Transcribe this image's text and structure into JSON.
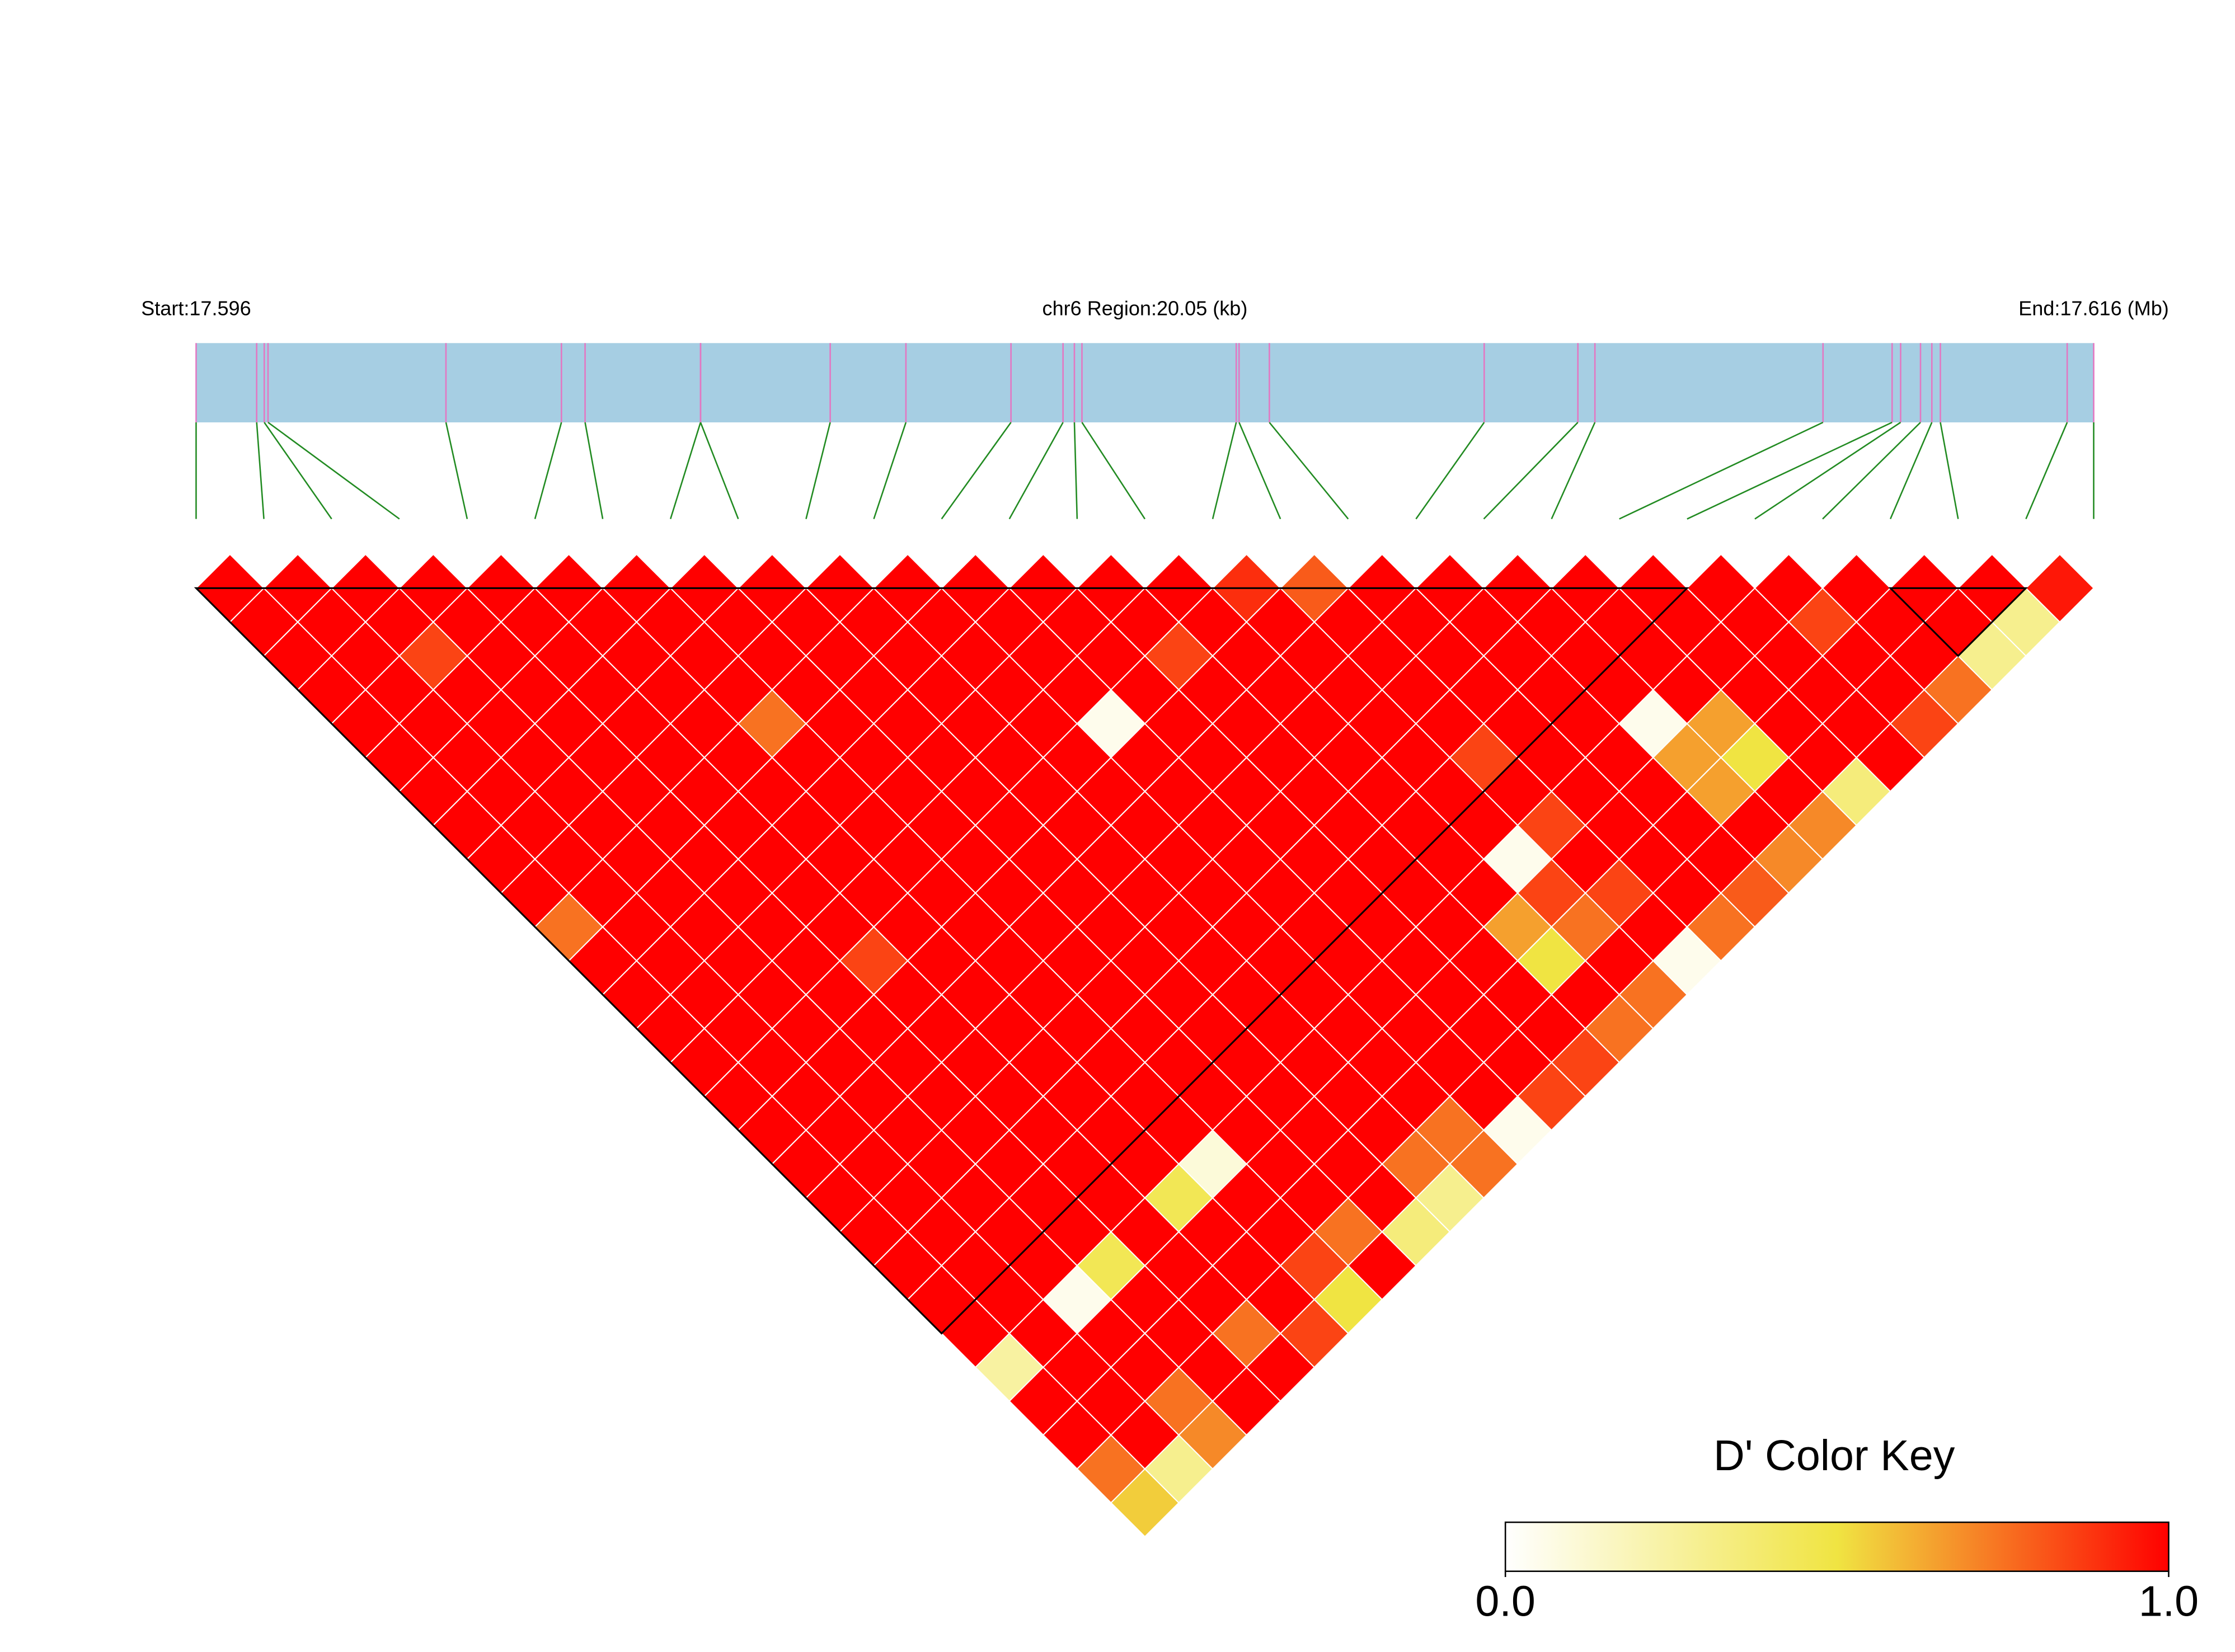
{
  "chart_data": {
    "type": "ld-heatmap",
    "start_label": "Start:17.596",
    "region_label": "chr6 Region:20.05 (kb)",
    "end_label": "End:17.616 (Mb)",
    "legend_title": "D' Color Key",
    "color_scale": {
      "colors": [
        "#ffffff",
        "#f0e442",
        "#ff0000"
      ],
      "ticks": [
        {
          "value": 0,
          "label": "0.0"
        },
        {
          "value": 1,
          "label": "1.0"
        }
      ]
    },
    "xlim": [
      0,
      20.05
    ],
    "positions_kb": [
      0,
      0.64,
      0.72,
      0.76,
      2.64,
      3.86,
      4.11,
      5.33,
      5.33,
      6.7,
      7.5,
      8.61,
      9.16,
      9.28,
      9.36,
      10.99,
      11.02,
      11.34,
      13.61,
      14.6,
      14.78,
      17.19,
      17.92,
      18.01,
      18.22,
      18.34,
      18.43,
      19.77,
      20.05
    ],
    "dprime": [
      [
        1,
        1,
        1,
        1,
        1,
        1,
        1,
        1,
        1,
        1,
        0.75,
        1,
        1,
        1,
        1,
        1,
        1,
        1,
        1,
        1,
        1,
        1,
        1,
        0.25,
        1,
        1,
        0.75,
        0.55
      ],
      [
        1,
        1,
        1,
        1,
        1,
        1,
        1,
        1,
        1,
        1,
        1,
        1,
        1,
        1,
        1,
        1,
        1,
        1,
        1,
        1,
        1,
        1,
        1,
        1,
        1,
        1,
        0.3
      ],
      [
        1,
        1,
        0.85,
        1,
        1,
        1,
        1,
        1,
        1,
        1,
        1,
        1,
        1,
        1,
        1,
        1,
        1,
        1,
        1,
        1,
        1,
        0.05,
        1,
        1,
        0.75,
        0.7
      ],
      [
        1,
        1,
        1,
        1,
        1,
        1,
        1,
        1,
        1,
        1,
        1,
        1,
        1,
        1,
        1,
        1,
        1,
        1,
        1,
        1,
        0.45,
        1,
        1,
        1,
        1
      ],
      [
        1,
        1,
        1,
        1,
        1,
        1,
        1,
        1,
        1,
        1,
        1,
        0.85,
        1,
        1,
        1,
        1,
        1,
        1,
        1,
        1,
        1,
        1,
        0.75,
        1
      ],
      [
        1,
        1,
        1,
        1,
        1,
        1,
        1,
        1,
        1,
        1,
        1,
        1,
        1,
        1,
        1,
        1,
        1,
        1,
        0.45,
        1,
        1,
        1,
        0.85
      ],
      [
        1,
        1,
        1,
        1,
        0.75,
        1,
        1,
        1,
        1,
        1,
        1,
        1,
        1,
        1,
        1,
        1,
        1,
        0.1,
        1,
        1,
        0.85,
        0.5
      ],
      [
        1,
        1,
        1,
        1,
        1,
        1,
        1,
        1,
        1,
        1,
        1,
        1,
        1,
        1,
        1,
        1,
        1,
        1,
        1,
        0.75,
        1
      ],
      [
        1,
        1,
        1,
        1,
        1,
        1,
        1,
        1,
        1,
        1,
        1,
        1,
        1,
        1,
        1,
        1,
        1,
        1,
        1,
        0.35
      ],
      [
        1,
        1,
        1,
        1,
        1,
        1,
        1,
        1,
        1,
        1,
        1,
        1,
        1,
        1,
        1,
        1,
        1,
        0.75,
        0.3
      ],
      [
        1,
        1,
        1,
        1,
        1,
        1,
        1,
        1,
        1,
        1,
        1,
        1,
        1,
        1,
        1,
        1,
        0.75,
        0.75
      ],
      [
        1,
        1,
        1,
        1,
        0.05,
        1,
        1,
        1,
        1,
        1,
        1,
        1,
        1,
        1,
        1,
        1,
        0.05
      ],
      [
        1,
        1,
        1,
        1,
        1,
        1,
        1,
        1,
        1,
        1,
        1,
        1,
        1,
        1,
        1,
        0.85
      ],
      [
        1,
        1,
        0.85,
        1,
        1,
        1,
        1,
        1,
        1,
        1,
        1,
        1,
        1,
        1,
        0.85
      ],
      [
        1,
        1,
        1,
        1,
        1,
        1,
        1,
        1,
        1,
        1,
        0.65,
        0.5,
        1,
        0.75
      ],
      [
        0.9,
        1,
        1,
        1,
        1,
        1,
        1,
        1,
        0.05,
        0.85,
        0.75,
        1,
        0.75
      ],
      [
        0.8,
        1,
        1,
        1,
        1,
        0.85,
        1,
        0.85,
        1,
        0.85,
        1,
        0.05
      ],
      [
        1,
        1,
        1,
        1,
        1,
        1,
        1,
        1,
        1,
        1,
        0.75
      ],
      [
        1,
        1,
        1,
        1,
        1,
        1,
        1,
        1,
        1,
        0.8
      ],
      [
        1,
        1,
        1,
        1,
        0.05,
        0.65,
        0.65,
        1,
        0.7
      ],
      [
        1,
        1,
        1,
        1,
        0.65,
        0.5,
        1,
        0.7
      ],
      [
        1,
        1,
        1,
        1,
        1,
        1,
        0.35
      ],
      [
        1,
        1,
        1,
        1,
        1,
        1
      ],
      [
        1,
        0.85,
        1,
        1,
        0.85
      ],
      [
        1,
        1,
        1,
        0.75
      ],
      [
        1,
        1,
        0.3
      ],
      [
        1,
        0.3
      ],
      [
        0.95
      ]
    ],
    "blocks": [
      [
        0,
        22
      ],
      [
        25,
        27
      ]
    ]
  }
}
